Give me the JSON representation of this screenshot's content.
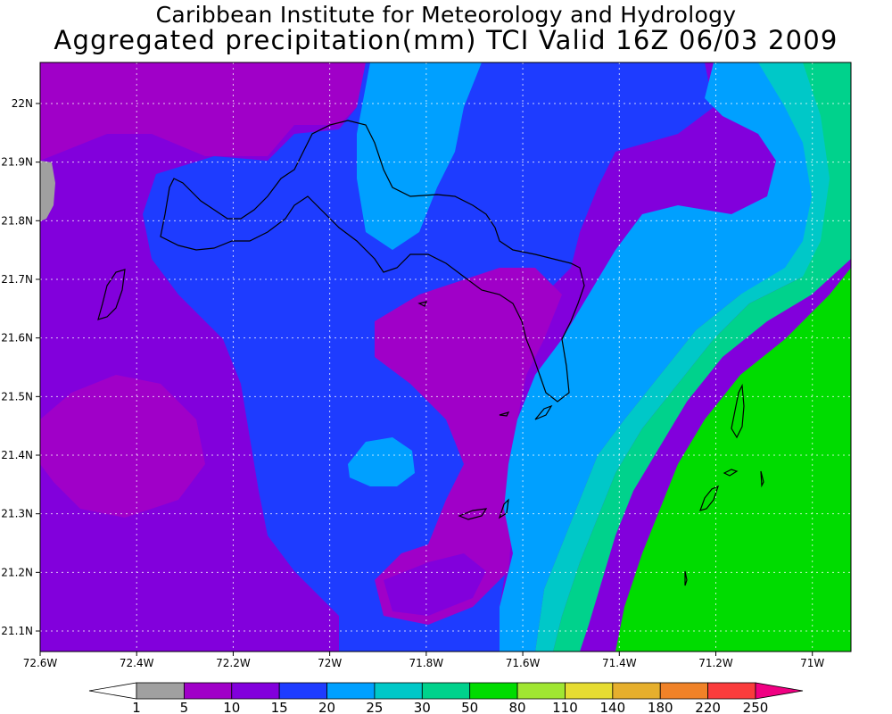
{
  "header": {
    "title_line1": "Caribbean Institute for Meteorology and Hydrology",
    "title_line2": "Aggregated precipitation(mm) TCI Valid 16Z 06/03 2009"
  },
  "map": {
    "x_ticks": [
      {
        "label": "72.6W",
        "lon": -72.6
      },
      {
        "label": "72.4W",
        "lon": -72.4
      },
      {
        "label": "72.2W",
        "lon": -72.2
      },
      {
        "label": "72W",
        "lon": -72.0
      },
      {
        "label": "71.8W",
        "lon": -71.8
      },
      {
        "label": "71.6W",
        "lon": -71.6
      },
      {
        "label": "71.4W",
        "lon": -71.4
      },
      {
        "label": "71.2W",
        "lon": -71.2
      },
      {
        "label": "71W",
        "lon": -71.0
      }
    ],
    "y_ticks": [
      {
        "label": "22N",
        "lat": 22.0
      },
      {
        "label": "21.9N",
        "lat": 21.9
      },
      {
        "label": "21.8N",
        "lat": 21.8
      },
      {
        "label": "21.7N",
        "lat": 21.7
      },
      {
        "label": "21.6N",
        "lat": 21.6
      },
      {
        "label": "21.5N",
        "lat": 21.5
      },
      {
        "label": "21.4N",
        "lat": 21.4
      },
      {
        "label": "21.3N",
        "lat": 21.3
      },
      {
        "label": "21.2N",
        "lat": 21.2
      },
      {
        "label": "21.1N",
        "lat": 21.1
      }
    ],
    "lon_range": [
      -72.6,
      -70.92
    ],
    "lat_range": [
      21.065,
      22.07
    ],
    "grid": true,
    "shading_colors": {
      "5-10": "#a000c8",
      "10-15": "#8200dc",
      "15-20": "#1e3cff",
      "20-25": "#00a0ff",
      "25-30": "#00c8c8",
      "30-50": "#00d28c",
      "50-80": "#00dc00",
      "1-5": "#a0a0a0"
    }
  },
  "colorbar": {
    "labels": [
      "1",
      "5",
      "10",
      "15",
      "20",
      "25",
      "30",
      "50",
      "80",
      "110",
      "140",
      "180",
      "220",
      "250"
    ],
    "colors": [
      "#a0a0a0",
      "#a000c8",
      "#8200dc",
      "#1e3cff",
      "#00a0ff",
      "#00c8c8",
      "#00d28c",
      "#00dc00",
      "#a0e632",
      "#e6dc32",
      "#e6af2d",
      "#f08228",
      "#fa3c3c"
    ],
    "under_color": "#ffffff",
    "over_color": "#f00082"
  }
}
